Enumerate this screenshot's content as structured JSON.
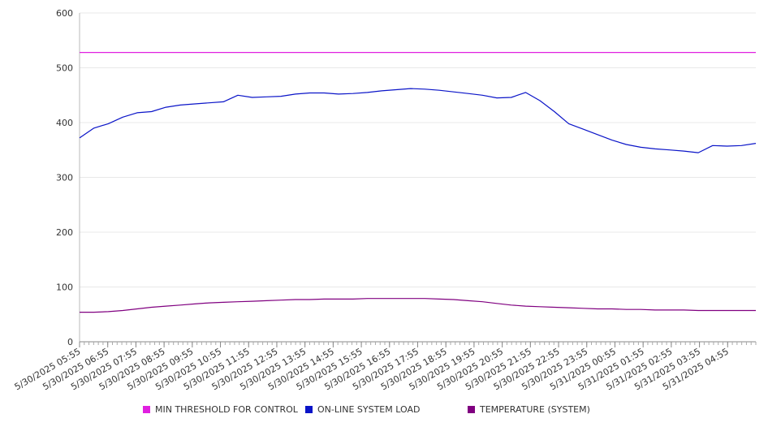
{
  "chart_data": {
    "type": "line",
    "title": "",
    "xlabel": "",
    "ylabel": "",
    "ylim": [
      0,
      600
    ],
    "yticks": [
      0,
      100,
      200,
      300,
      400,
      500,
      600
    ],
    "grid": true,
    "legend_position": "bottom",
    "x_tick_labels": [
      "5/30/2025 05:55",
      "5/30/2025 06:55",
      "5/30/2025 07:55",
      "5/30/2025 08:55",
      "5/30/2025 09:55",
      "5/30/2025 10:55",
      "5/30/2025 11:55",
      "5/30/2025 12:55",
      "5/30/2025 13:55",
      "5/30/2025 14:55",
      "5/30/2025 15:55",
      "5/30/2025 16:55",
      "5/30/2025 17:55",
      "5/30/2025 18:55",
      "5/30/2025 19:55",
      "5/30/2025 20:55",
      "5/30/2025 21:55",
      "5/30/2025 22:55",
      "5/30/2025 23:55",
      "5/31/2025 00:55",
      "5/31/2025 01:55",
      "5/31/2025 02:55",
      "5/31/2025 03:55",
      "5/31/2025 04:55"
    ],
    "x": [
      "05:55",
      "06:25",
      "06:55",
      "07:25",
      "07:55",
      "08:25",
      "08:55",
      "09:25",
      "09:55",
      "10:25",
      "10:55",
      "11:25",
      "11:55",
      "12:25",
      "12:55",
      "13:25",
      "13:55",
      "14:25",
      "14:55",
      "15:25",
      "15:55",
      "16:25",
      "16:55",
      "17:25",
      "17:55",
      "18:25",
      "18:55",
      "19:25",
      "19:55",
      "20:25",
      "20:55",
      "21:25",
      "21:55",
      "22:25",
      "22:55",
      "23:25",
      "23:55",
      "00:25",
      "00:55",
      "01:25",
      "01:55",
      "02:25",
      "02:55",
      "03:25",
      "03:55",
      "04:25",
      "04:55",
      "05:25"
    ],
    "series": [
      {
        "name": "MIN THRESHOLD FOR CONTROL",
        "color": "#e020e0",
        "values": [
          528,
          528,
          528,
          528,
          528,
          528,
          528,
          528,
          528,
          528,
          528,
          528,
          528,
          528,
          528,
          528,
          528,
          528,
          528,
          528,
          528,
          528,
          528,
          528,
          528,
          528,
          528,
          528,
          528,
          528,
          528,
          528,
          528,
          528,
          528,
          528,
          528,
          528,
          528,
          528,
          528,
          528,
          528,
          528,
          528,
          528,
          528,
          528
        ]
      },
      {
        "name": "ON-LINE SYSTEM LOAD",
        "color": "#0a14c8",
        "values": [
          372,
          390,
          398,
          410,
          418,
          420,
          428,
          432,
          434,
          436,
          438,
          450,
          446,
          447,
          448,
          452,
          454,
          454,
          452,
          453,
          455,
          458,
          460,
          462,
          461,
          459,
          456,
          453,
          450,
          445,
          446,
          455,
          440,
          420,
          398,
          388,
          378,
          368,
          360,
          355,
          352,
          350,
          348,
          345,
          358,
          357,
          358,
          362
        ]
      },
      {
        "name": "TEMPERATURE (SYSTEM)",
        "color": "#800080",
        "values": [
          54,
          54,
          55,
          57,
          60,
          63,
          65,
          67,
          69,
          71,
          72,
          73,
          74,
          75,
          76,
          77,
          77,
          78,
          78,
          78,
          79,
          79,
          79,
          79,
          79,
          78,
          77,
          75,
          73,
          70,
          67,
          65,
          64,
          63,
          62,
          61,
          60,
          60,
          59,
          59,
          58,
          58,
          58,
          57,
          57,
          57,
          57,
          57
        ]
      }
    ]
  }
}
